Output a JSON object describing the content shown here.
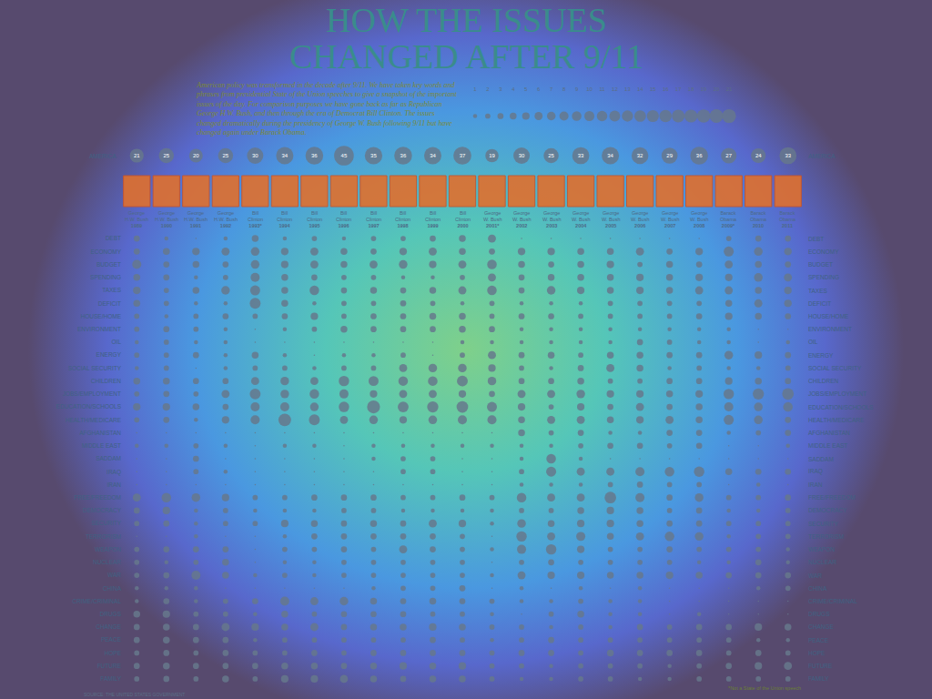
{
  "chart_data": {
    "type": "bubble",
    "title": [
      "HOW THE ISSUES",
      "CHANGED AFTER 9/11"
    ],
    "subtitle": [
      "American policy was transformed in the decade after 9/11. We have taken key words and",
      "phrases from presidential State of the Union speeches to give a snapshot of the important",
      "issues of the day. For comparison purposes we have gone back as far as Republican",
      "George H.W. Bush, and then through the era of Democrat Bill Clinton. The issues",
      "changed dramatically during the presidency of George W. Bush following 9/11 but have",
      "changed again under Barack Obama."
    ],
    "size_legend": [
      1,
      2,
      3,
      4,
      5,
      6,
      7,
      8,
      9,
      10,
      11,
      12,
      13,
      14,
      15,
      16,
      17,
      18,
      19,
      20,
      21
    ],
    "columns": [
      {
        "president": "George H.W. Bush",
        "year": "1989"
      },
      {
        "president": "George H.W. Bush",
        "year": "1990"
      },
      {
        "president": "George H.W. Bush",
        "year": "1991"
      },
      {
        "president": "George H.W. Bush",
        "year": "1992"
      },
      {
        "president": "Bill Clinton",
        "year": "1993*"
      },
      {
        "president": "Bill Clinton",
        "year": "1994"
      },
      {
        "president": "Bill Clinton",
        "year": "1995"
      },
      {
        "president": "Bill Clinton",
        "year": "1996"
      },
      {
        "president": "Bill Clinton",
        "year": "1997"
      },
      {
        "president": "Bill Clinton",
        "year": "1998"
      },
      {
        "president": "Bill Clinton",
        "year": "1999"
      },
      {
        "president": "Bill Clinton",
        "year": "2000"
      },
      {
        "president": "George W. Bush",
        "year": "2001*"
      },
      {
        "president": "George W. Bush",
        "year": "2002"
      },
      {
        "president": "George W. Bush",
        "year": "2003"
      },
      {
        "president": "George W. Bush",
        "year": "2004"
      },
      {
        "president": "George W. Bush",
        "year": "2005"
      },
      {
        "president": "George W. Bush",
        "year": "2006"
      },
      {
        "president": "George W. Bush",
        "year": "2007"
      },
      {
        "president": "George W. Bush",
        "year": "2008"
      },
      {
        "president": "Barack Obama",
        "year": "2009*"
      },
      {
        "president": "Barack Obama",
        "year": "2010"
      },
      {
        "president": "Barack Obama",
        "year": "2011"
      }
    ],
    "america": {
      "label": "AMERICA",
      "values": [
        21,
        25,
        20,
        25,
        30,
        34,
        36,
        45,
        35,
        36,
        34,
        37,
        19,
        30,
        25,
        33,
        34,
        32,
        29,
        36,
        27,
        24,
        33
      ]
    },
    "rows": [
      {
        "label": "DEBT",
        "values": [
          3,
          1,
          0,
          1,
          4,
          1,
          2,
          1,
          2,
          2,
          3,
          4,
          6,
          0,
          0,
          0,
          0,
          0,
          0,
          0,
          2,
          3,
          3
        ]
      },
      {
        "label": "ECONOMY",
        "values": [
          3,
          4,
          5,
          6,
          7,
          5,
          6,
          4,
          3,
          5,
          6,
          4,
          3,
          5,
          5,
          4,
          4,
          6,
          3,
          5,
          10,
          7,
          5
        ]
      },
      {
        "label": "BUDGET",
        "values": [
          8,
          3,
          4,
          3,
          7,
          5,
          6,
          4,
          6,
          7,
          5,
          6,
          9,
          4,
          3,
          4,
          5,
          2,
          4,
          3,
          6,
          4,
          3
        ]
      },
      {
        "label": "SPENDING",
        "values": [
          4,
          3,
          1,
          2,
          8,
          4,
          3,
          2,
          2,
          1,
          1,
          2,
          6,
          3,
          4,
          4,
          4,
          5,
          4,
          5,
          5,
          7,
          6
        ]
      },
      {
        "label": "TAXES",
        "values": [
          5,
          2,
          4,
          7,
          10,
          4,
          9,
          3,
          4,
          3,
          4,
          6,
          9,
          3,
          7,
          5,
          4,
          5,
          4,
          6,
          6,
          4,
          5
        ]
      },
      {
        "label": "DEFICIT",
        "values": [
          4,
          2,
          1,
          1,
          12,
          4,
          1,
          2,
          2,
          3,
          2,
          1,
          2,
          1,
          1,
          1,
          2,
          2,
          2,
          2,
          4,
          6,
          5
        ]
      },
      {
        "label": "HOUSE/HOME",
        "values": [
          2,
          1,
          2,
          3,
          2,
          3,
          5,
          2,
          3,
          3,
          4,
          4,
          2,
          3,
          3,
          2,
          2,
          2,
          2,
          3,
          5,
          4,
          3
        ]
      },
      {
        "label": "ENVIRONMENT",
        "values": [
          2,
          3,
          2,
          1,
          0,
          1,
          2,
          4,
          3,
          3,
          3,
          4,
          3,
          1,
          1,
          1,
          1,
          1,
          1,
          1,
          1,
          0,
          0
        ]
      },
      {
        "label": "OIL",
        "values": [
          1,
          2,
          1,
          1,
          0,
          0,
          0,
          0,
          0,
          0,
          0,
          1,
          1,
          1,
          1,
          1,
          1,
          3,
          2,
          1,
          1,
          0,
          1
        ]
      },
      {
        "label": "ENERGY",
        "values": [
          2,
          2,
          3,
          1,
          4,
          1,
          0,
          1,
          1,
          2,
          0,
          2,
          6,
          3,
          4,
          2,
          4,
          4,
          3,
          3,
          7,
          5,
          3
        ]
      },
      {
        "label": "SOCIAL SECURITY",
        "values": [
          1,
          2,
          0,
          1,
          2,
          2,
          1,
          2,
          2,
          6,
          7,
          7,
          5,
          2,
          1,
          3,
          6,
          4,
          1,
          2,
          1,
          1,
          2
        ]
      },
      {
        "label": "CHILDREN",
        "values": [
          4,
          4,
          3,
          3,
          6,
          7,
          6,
          11,
          10,
          9,
          9,
          12,
          7,
          3,
          3,
          4,
          2,
          2,
          3,
          3,
          5,
          4,
          3
        ]
      },
      {
        "label": "JOBS/EMPLOYMENT",
        "values": [
          2,
          3,
          2,
          6,
          12,
          7,
          9,
          8,
          5,
          6,
          6,
          5,
          3,
          6,
          6,
          7,
          5,
          5,
          4,
          5,
          11,
          13,
          14
        ]
      },
      {
        "label": "EDUCATION/SCHOOLS",
        "values": [
          5,
          5,
          4,
          3,
          8,
          8,
          7,
          11,
          18,
          12,
          13,
          14,
          10,
          5,
          2,
          5,
          3,
          6,
          3,
          4,
          8,
          7,
          9
        ]
      },
      {
        "label": "HEALTH/MEDICARE",
        "values": [
          2,
          3,
          1,
          5,
          8,
          17,
          12,
          6,
          7,
          5,
          7,
          8,
          8,
          4,
          6,
          6,
          4,
          5,
          6,
          4,
          10,
          7,
          3
        ]
      },
      {
        "label": "AFGHANISTAN",
        "values": [
          0,
          0,
          0,
          0,
          0,
          0,
          0,
          0,
          0,
          0,
          0,
          0,
          0,
          4,
          2,
          3,
          1,
          1,
          3,
          3,
          1,
          2,
          3
        ]
      },
      {
        "label": "MIDDLE EAST",
        "values": [
          1,
          1,
          2,
          1,
          0,
          1,
          1,
          0,
          1,
          1,
          1,
          1,
          1,
          1,
          1,
          2,
          3,
          3,
          2,
          3,
          0,
          0,
          1
        ]
      },
      {
        "label": "SADDAM",
        "values": [
          0,
          0,
          3,
          0,
          0,
          0,
          0,
          0,
          1,
          2,
          2,
          0,
          0,
          1,
          9,
          1,
          0,
          0,
          0,
          0,
          0,
          0,
          0
        ]
      },
      {
        "label": "IRAQ",
        "values": [
          0,
          0,
          2,
          1,
          0,
          0,
          0,
          0,
          0,
          2,
          2,
          0,
          0,
          2,
          10,
          6,
          6,
          8,
          9,
          11,
          4,
          3,
          3
        ]
      },
      {
        "label": "IRAN",
        "values": [
          0,
          0,
          0,
          0,
          0,
          0,
          0,
          0,
          0,
          0,
          0,
          0,
          0,
          1,
          1,
          1,
          2,
          3,
          2,
          2,
          0,
          1,
          0
        ]
      },
      {
        "label": "FREE/FREEDOM",
        "values": [
          6,
          9,
          7,
          5,
          2,
          2,
          3,
          3,
          3,
          2,
          2,
          3,
          2,
          9,
          6,
          6,
          14,
          8,
          3,
          7,
          2,
          2,
          3
        ]
      },
      {
        "label": "DEMOCRACY",
        "values": [
          3,
          5,
          1,
          2,
          1,
          1,
          1,
          2,
          2,
          1,
          1,
          1,
          1,
          2,
          2,
          4,
          5,
          4,
          2,
          3,
          1,
          1,
          2
        ]
      },
      {
        "label": "SECURITY",
        "values": [
          2,
          3,
          1,
          2,
          2,
          5,
          4,
          3,
          4,
          3,
          6,
          5,
          1,
          7,
          4,
          5,
          5,
          4,
          3,
          3,
          2,
          2,
          2
        ]
      },
      {
        "label": "TERRORISM",
        "values": [
          0,
          0,
          1,
          0,
          0,
          1,
          3,
          3,
          3,
          3,
          3,
          2,
          0,
          11,
          6,
          8,
          4,
          6,
          9,
          7,
          1,
          2,
          2
        ]
      },
      {
        "label": "WEAPON",
        "values": [
          2,
          3,
          3,
          3,
          0,
          2,
          2,
          3,
          2,
          6,
          3,
          2,
          1,
          8,
          11,
          5,
          2,
          2,
          3,
          2,
          2,
          2,
          1
        ]
      },
      {
        "label": "NUCLEAR",
        "values": [
          2,
          1,
          2,
          4,
          0,
          1,
          1,
          2,
          2,
          2,
          2,
          2,
          0,
          2,
          3,
          2,
          2,
          2,
          2,
          1,
          1,
          3,
          1
        ]
      },
      {
        "label": "WAR",
        "values": [
          2,
          3,
          8,
          4,
          1,
          2,
          1,
          2,
          2,
          2,
          2,
          2,
          1,
          6,
          5,
          5,
          4,
          4,
          5,
          4,
          3,
          3,
          3
        ]
      },
      {
        "label": "CHINA",
        "values": [
          1,
          1,
          1,
          0,
          0,
          0,
          0,
          0,
          1,
          2,
          2,
          3,
          0,
          1,
          0,
          1,
          0,
          1,
          0,
          0,
          0,
          1,
          2
        ]
      },
      {
        "label": "CRIME/CRIMINAL",
        "values": [
          1,
          3,
          1,
          2,
          3,
          8,
          6,
          7,
          4,
          3,
          4,
          3,
          2,
          1,
          1,
          2,
          1,
          1,
          0,
          0,
          0,
          0,
          0
        ]
      },
      {
        "label": "DRUGS",
        "values": [
          4,
          5,
          2,
          2,
          1,
          4,
          2,
          3,
          3,
          3,
          2,
          2,
          1,
          0,
          2,
          4,
          1,
          1,
          0,
          1,
          0,
          0,
          0
        ]
      },
      {
        "label": "CHANGE",
        "values": [
          3,
          4,
          3,
          6,
          5,
          4,
          6,
          3,
          4,
          4,
          5,
          4,
          2,
          2,
          1,
          2,
          1,
          3,
          2,
          3,
          3,
          5,
          4
        ]
      },
      {
        "label": "PEACE",
        "values": [
          3,
          4,
          3,
          3,
          1,
          2,
          2,
          2,
          2,
          2,
          3,
          2,
          1,
          2,
          3,
          2,
          2,
          2,
          2,
          2,
          2,
          1,
          1
        ]
      },
      {
        "label": "HOPE",
        "values": [
          2,
          3,
          2,
          3,
          2,
          2,
          3,
          2,
          3,
          3,
          3,
          3,
          2,
          3,
          3,
          2,
          4,
          3,
          3,
          3,
          2,
          3,
          2
        ]
      },
      {
        "label": "FUTURE",
        "values": [
          3,
          4,
          3,
          3,
          3,
          4,
          4,
          3,
          4,
          5,
          4,
          5,
          2,
          2,
          1,
          2,
          2,
          2,
          1,
          2,
          3,
          5,
          6
        ]
      },
      {
        "label": "FAMILY",
        "values": [
          2,
          3,
          2,
          4,
          2,
          5,
          5,
          6,
          4,
          3,
          4,
          4,
          2,
          1,
          1,
          2,
          2,
          1,
          1,
          2,
          2,
          2,
          2
        ]
      }
    ],
    "color": "#66788c",
    "grid": false,
    "footnote": "*Not a State of the Union speech",
    "source": "SOURCE: THE UNITED STATES GOVERNMENT"
  }
}
